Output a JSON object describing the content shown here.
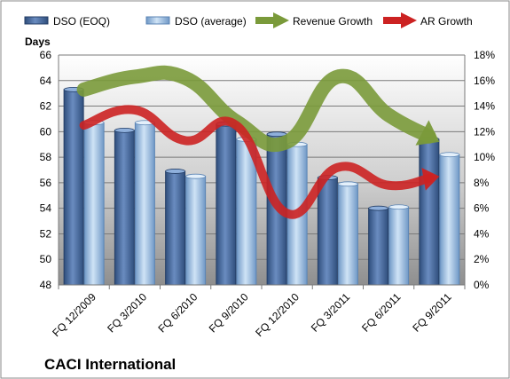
{
  "chart_data": {
    "type": "bar",
    "title": "CACI International",
    "y_axis_label": "Days",
    "categories": [
      "FQ 12/2009",
      "FQ 3/2010",
      "FQ 6/2010",
      "FQ 9/2010",
      "FQ 12/2010",
      "FQ 3/2011",
      "FQ 6/2011",
      "FQ 9/2011"
    ],
    "ylim": [
      48,
      66
    ],
    "y_ticks": [
      "48",
      "50",
      "52",
      "54",
      "56",
      "58",
      "60",
      "62",
      "64",
      "66"
    ],
    "y2lim": [
      0,
      18
    ],
    "y2_ticks": [
      "0%",
      "2%",
      "4%",
      "6%",
      "8%",
      "10%",
      "12%",
      "14%",
      "16%",
      "18%"
    ],
    "grid": true,
    "legend_position": "top",
    "series": [
      {
        "name": "DSO (EOQ)",
        "kind": "bar",
        "axis": "left",
        "color": "#4a6fa5",
        "values": [
          63.3,
          60.1,
          56.9,
          60.6,
          59.8,
          56.4,
          54.0,
          59.4
        ]
      },
      {
        "name": "DSO (average)",
        "kind": "bar",
        "axis": "left",
        "color": "#a8c8e8",
        "values": [
          60.7,
          60.7,
          56.5,
          59.4,
          59.0,
          55.9,
          54.1,
          58.2
        ]
      },
      {
        "name": "Revenue Growth",
        "kind": "line",
        "axis": "right",
        "color": "#7a9a3a",
        "values": [
          15.3,
          16.3,
          16.2,
          12.8,
          11.2,
          16.3,
          13.3,
          11.2
        ]
      },
      {
        "name": "AR Growth",
        "kind": "line",
        "axis": "right",
        "color": "#cc2222",
        "values": [
          12.5,
          13.7,
          11.3,
          12.5,
          5.6,
          9.2,
          7.8,
          8.5
        ]
      }
    ]
  }
}
